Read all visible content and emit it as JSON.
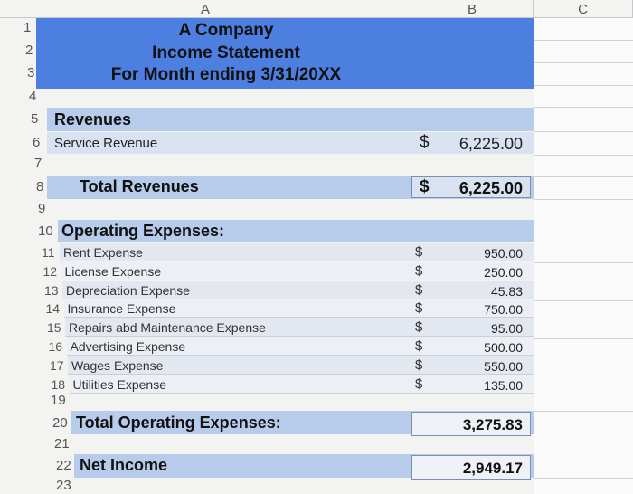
{
  "columns": {
    "a": "A",
    "b": "B",
    "c": "C"
  },
  "header": {
    "row1": "1",
    "row2": "2",
    "row3": "3",
    "row4": "4",
    "company": "A Company",
    "statement": "Income Statement",
    "period": "For Month ending 3/31/20XX"
  },
  "revenues": {
    "row_label": "5",
    "label": "Revenues",
    "service_row": "6",
    "service_label": "Service Revenue",
    "service_currency": "$",
    "service_amount": "6,225.00",
    "blank_row": "7",
    "total_row": "8",
    "total_label": "Total Revenues",
    "total_currency": "$",
    "total_amount": "6,225.00",
    "after_row": "9"
  },
  "expenses": {
    "row_label": "10",
    "label": "Operating Expenses:",
    "items": [
      {
        "row": "11",
        "label": "Rent Expense",
        "currency": "$",
        "amount": "950.00"
      },
      {
        "row": "12",
        "label": "License Expense",
        "currency": "$",
        "amount": "250.00"
      },
      {
        "row": "13",
        "label": "Depreciation Expense",
        "currency": "$",
        "amount": "45.83"
      },
      {
        "row": "14",
        "label": "Insurance Expense",
        "currency": "$",
        "amount": "750.00"
      },
      {
        "row": "15",
        "label": "Repairs abd Maintenance Expense",
        "currency": "$",
        "amount": "95.00"
      },
      {
        "row": "16",
        "label": "Advertising Expense",
        "currency": "$",
        "amount": "500.00"
      },
      {
        "row": "17",
        "label": "Wages Expense",
        "currency": "$",
        "amount": "550.00"
      },
      {
        "row": "18",
        "label": "Utilities Expense",
        "currency": "$",
        "amount": "135.00"
      }
    ],
    "blank_row": "19",
    "total_row": "20",
    "total_label": "Total Operating Expenses:",
    "total_amount": "3,275.83",
    "after_row": "21"
  },
  "net_income": {
    "row": "22",
    "label": "Net Income",
    "amount": "2,949.17",
    "after_row": "23"
  },
  "colors": {
    "header_band": "#4d7fe0",
    "section_band": "#b7cbeb",
    "row_band": "#d9e2f1"
  }
}
